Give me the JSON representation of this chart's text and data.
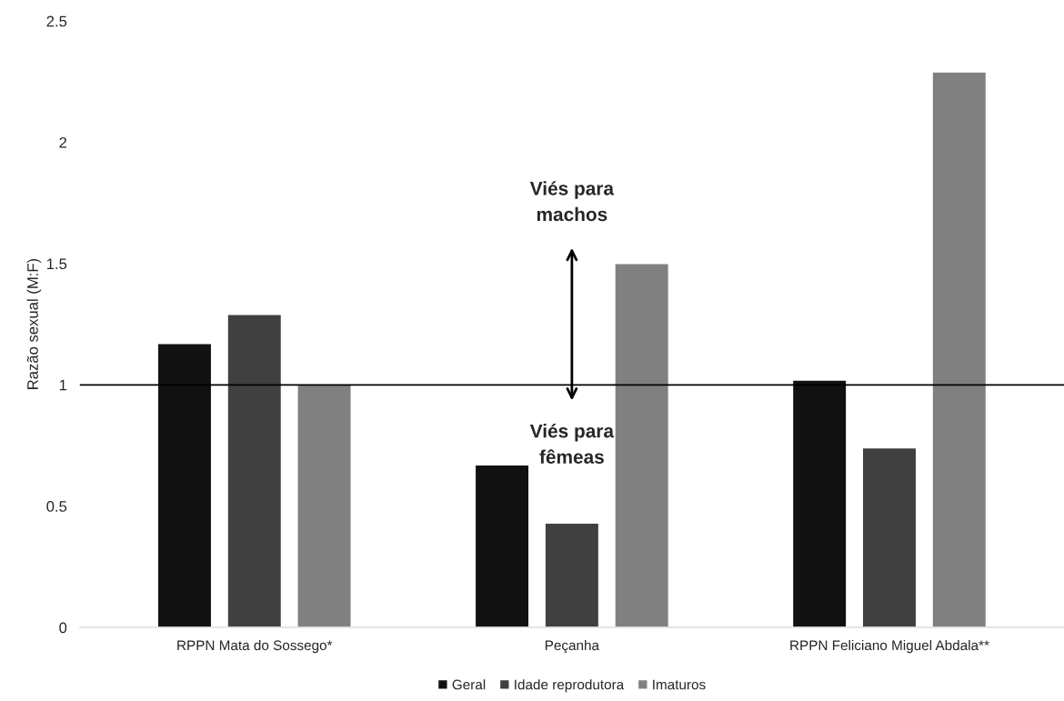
{
  "chart_data": {
    "type": "bar",
    "ylabel": "Razão sexual (M:F)",
    "categories": [
      "RPPN Mata do Sossego*",
      "Peçanha",
      "RPPN Feliciano Miguel Abdala**"
    ],
    "series": [
      {
        "name": "Geral",
        "color": "#111111",
        "values": [
          1.17,
          0.67,
          1.02
        ]
      },
      {
        "name": "Idade reprodutora",
        "color": "#404040",
        "values": [
          1.29,
          0.43,
          0.74
        ]
      },
      {
        "name": "Imaturos",
        "color": "#808080",
        "values": [
          1.0,
          1.5,
          2.29
        ]
      }
    ],
    "ylim": [
      0,
      2.5
    ],
    "yticks": [
      0,
      0.5,
      1,
      1.5,
      2,
      2.5
    ],
    "ref_lines": [
      {
        "axis": "y",
        "value": 1,
        "color": "#000000"
      }
    ],
    "annotations": [
      "Viés para\nmachos",
      "Viés para\nfêmeas"
    ],
    "legend": "bottom",
    "grid": false
  }
}
